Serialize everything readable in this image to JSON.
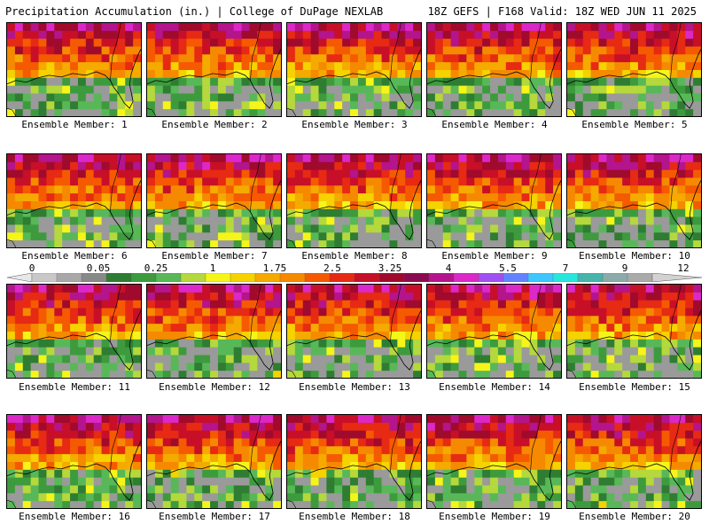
{
  "header": {
    "title_left": "Precipitation Accumulation (in.) | College of DuPage NEXLAB",
    "title_right": "18Z GEFS | F168 Valid: 18Z WED JUN 11 2025"
  },
  "panels": [
    {
      "label": "Ensemble Member: 1"
    },
    {
      "label": "Ensemble Member: 2"
    },
    {
      "label": "Ensemble Member: 3"
    },
    {
      "label": "Ensemble Member: 4"
    },
    {
      "label": "Ensemble Member: 5"
    },
    {
      "label": "Ensemble Member: 6"
    },
    {
      "label": "Ensemble Member: 7"
    },
    {
      "label": "Ensemble Member: 8"
    },
    {
      "label": "Ensemble Member: 9"
    },
    {
      "label": "Ensemble Member: 10"
    },
    {
      "label": "Ensemble Member: 11"
    },
    {
      "label": "Ensemble Member: 12"
    },
    {
      "label": "Ensemble Member: 13"
    },
    {
      "label": "Ensemble Member: 14"
    },
    {
      "label": "Ensemble Member: 15"
    },
    {
      "label": "Ensemble Member: 16"
    },
    {
      "label": "Ensemble Member: 17"
    },
    {
      "label": "Ensemble Member: 18"
    },
    {
      "label": "Ensemble Member: 19"
    },
    {
      "label": "Ensemble Member: 20"
    }
  ],
  "colorbar": {
    "tick_labels": [
      "0",
      "0.05",
      "0.25",
      "1",
      "1.75",
      "2.5",
      "3.25",
      "4",
      "5.5",
      "7",
      "9",
      "12"
    ],
    "colors": [
      "#e8e8e8",
      "#c8c8c8",
      "#a8a8a8",
      "#888888",
      "#2e7d32",
      "#3d9b3d",
      "#58b858",
      "#b5d83c",
      "#f5f51a",
      "#f5d200",
      "#f5aa00",
      "#f58a00",
      "#f55a00",
      "#e62a14",
      "#c80f28",
      "#a00a2d",
      "#8c0a50",
      "#b4148c",
      "#dc28c8",
      "#a050f0",
      "#6482ff",
      "#3cc8ff",
      "#28e6dc",
      "#46b4aa",
      "#8caaaa",
      "#aaaaaa",
      "#d2d2d2"
    ]
  }
}
